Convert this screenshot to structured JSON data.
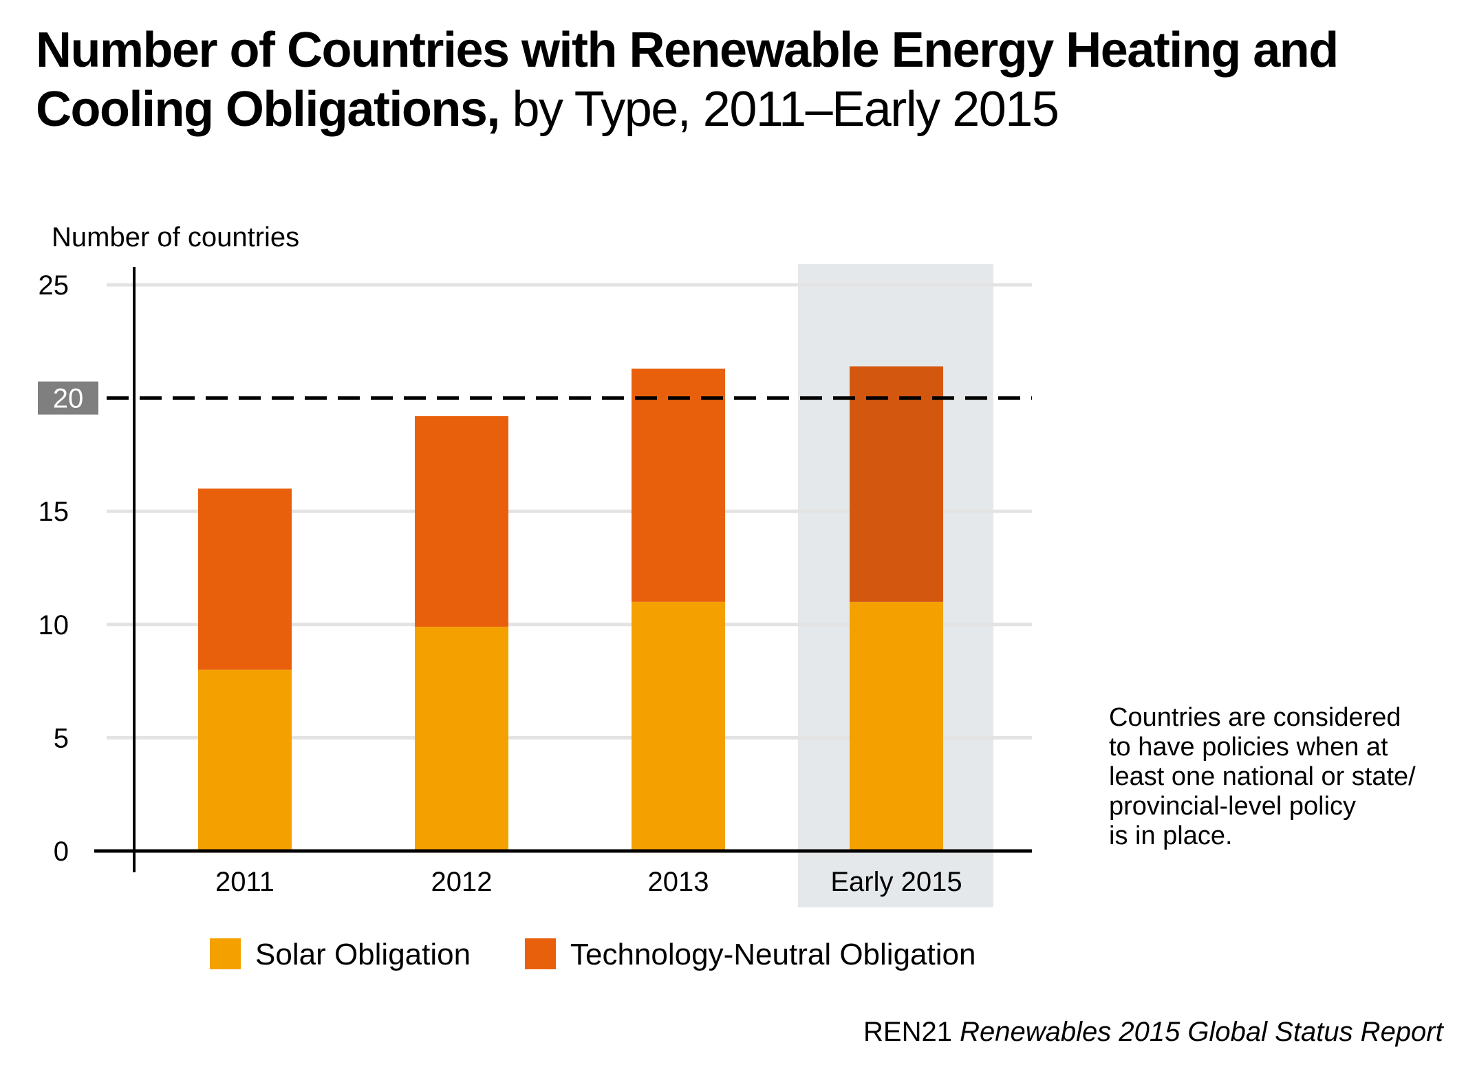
{
  "title": {
    "bold": "Number of Countries with Renewable  Energy Heating and Cooling Obligations,",
    "light": "by Type, 2011–Early 2015"
  },
  "note_lines": [
    "Countries are considered",
    "to have policies when at",
    "least one national or state/",
    "provincial-level policy",
    "is in place."
  ],
  "source": {
    "org": "REN21",
    "report": "Renewables 2015 Global Status Report"
  },
  "chart_data": {
    "type": "bar",
    "stacked": true,
    "categories": [
      "2011",
      "2012",
      "2013",
      "Early 2015"
    ],
    "series": [
      {
        "name": "Solar Obligation",
        "values": [
          8,
          9.9,
          11,
          11
        ],
        "color": "#f4a100"
      },
      {
        "name": "Technology-Neutral Obligation",
        "values": [
          8,
          9.3,
          10.3,
          10.4
        ],
        "color": "#e9600c"
      }
    ],
    "highlight_color": "#d4570f",
    "highlight_category": "Early 2015",
    "highlight_background": "#e4e8eb",
    "ylabel": "Number of countries",
    "ylim": [
      0,
      25
    ],
    "yticks": [
      "0",
      "5",
      "10",
      "15",
      "20",
      "25"
    ],
    "reference_line": {
      "value": 20,
      "label": "20",
      "label_bg": "#7f7f7f"
    },
    "grid": true,
    "legend_position": "bottom"
  }
}
